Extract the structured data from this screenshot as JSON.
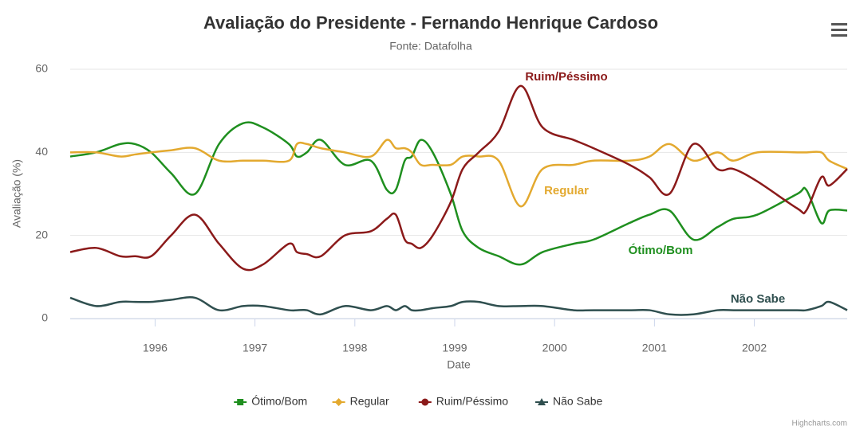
{
  "chart_data": {
    "type": "line",
    "title": "Avaliação do Presidente - Fernando Henrique Cardoso",
    "subtitle": "Fonte: Datafolha",
    "x_label": "Date",
    "y_label": "Avaliação (%)",
    "credits": "Highcharts.com",
    "xlim": [
      1995.15,
      2002.93
    ],
    "xticks": [
      1996,
      1997,
      1998,
      1999,
      2000,
      2001,
      2002
    ],
    "ylim": [
      0,
      60
    ],
    "yticks": [
      0,
      20,
      40,
      60
    ],
    "grid": true,
    "legend": "bottom",
    "x": [
      1995.15,
      1995.41,
      1995.65,
      1995.8,
      1995.96,
      1996.16,
      1996.4,
      1996.64,
      1996.88,
      1997.08,
      1997.34,
      1997.42,
      1997.52,
      1997.66,
      1997.9,
      1998.16,
      1998.32,
      1998.41,
      1998.5,
      1998.57,
      1998.66,
      1998.78,
      1998.96,
      1999.08,
      1999.24,
      1999.44,
      1999.66,
      1999.88,
      2000.19,
      2000.39,
      2000.75,
      2000.95,
      2001.15,
      2001.39,
      2001.63,
      2001.79,
      2002.03,
      2002.43,
      2002.52,
      2002.67,
      2002.75,
      2002.93
    ],
    "series": [
      {
        "name": "Ótimo/Bom",
        "color": "#1f8f1f",
        "marker": "square",
        "values": [
          39,
          40,
          42,
          42,
          40,
          35,
          30,
          42,
          47,
          46,
          42,
          39,
          40,
          43,
          37,
          38,
          31,
          31,
          38,
          39,
          43,
          40,
          30,
          21,
          17,
          15,
          13,
          16,
          18,
          19,
          23,
          25,
          26,
          19,
          22,
          24,
          25,
          30,
          31,
          23,
          26,
          26
        ]
      },
      {
        "name": "Regular",
        "color": "#e3a92f",
        "marker": "diamond",
        "values": [
          40,
          40,
          39,
          39.5,
          40,
          40.5,
          41,
          38,
          38,
          38,
          38,
          42,
          42,
          41,
          40,
          39,
          43,
          41,
          41,
          40,
          37,
          37,
          37,
          39,
          39,
          38,
          27,
          36,
          37,
          38,
          38,
          39,
          42,
          38,
          40,
          38,
          40,
          40,
          40,
          40,
          38,
          36
        ]
      },
      {
        "name": "Ruim/Péssimo",
        "color": "#8b1a1a",
        "marker": "circle",
        "values": [
          16,
          17,
          15,
          15,
          15,
          20,
          25,
          18,
          12,
          13,
          18,
          16,
          15.5,
          15,
          20,
          21,
          24,
          25,
          19,
          18,
          17,
          20,
          28,
          36,
          40,
          45,
          56,
          46,
          43,
          41,
          37,
          34,
          30,
          42,
          36,
          36,
          33,
          26.5,
          26,
          34,
          32,
          36
        ]
      },
      {
        "name": "Não Sabe",
        "color": "#2f4f4f",
        "marker": "triangle",
        "values": [
          5,
          3,
          4,
          4,
          4,
          4.5,
          5,
          2,
          3,
          3,
          2,
          2,
          2,
          1,
          3,
          2,
          3,
          2,
          3,
          2,
          2,
          2.5,
          3,
          4,
          4,
          3,
          3,
          3,
          2,
          2,
          2,
          2,
          1,
          1,
          2,
          2,
          2,
          2,
          2,
          3,
          4,
          2
        ]
      }
    ]
  }
}
